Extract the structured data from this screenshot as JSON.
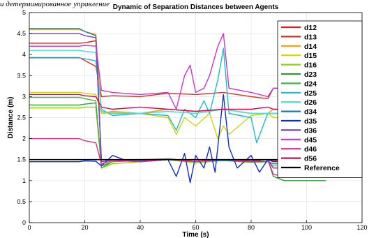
{
  "header_fragment": "и детерминированное управление",
  "chart_data": {
    "type": "line",
    "title": "Dynamic of Separation Distances between Agents",
    "xlabel": "Time (s)",
    "ylabel": "Distance (m)",
    "xlim": [
      0,
      120
    ],
    "ylim": [
      0,
      5
    ],
    "xticks": [
      "0",
      "20",
      "40",
      "60",
      "80",
      "100",
      "120"
    ],
    "yticks": [
      "0",
      "0.5",
      "1",
      "1.5",
      "2",
      "2.5",
      "3",
      "3.5",
      "4",
      "4.5",
      "5"
    ],
    "grid": true,
    "legend_position": "top-right",
    "series": [
      {
        "name": "d12",
        "color": "#e41a1c",
        "x": [
          0,
          18,
          20,
          24,
          26,
          30,
          40,
          50,
          60,
          70,
          80,
          86,
          88,
          92,
          107
        ],
        "y": [
          4.27,
          4.27,
          4.28,
          4.33,
          1.45,
          1.5,
          1.46,
          1.52,
          1.46,
          1.5,
          1.47,
          1.5,
          1.48,
          1.47,
          1.47
        ]
      },
      {
        "name": "d13",
        "color": "#d7301f",
        "x": [
          0,
          18,
          20,
          24,
          26,
          30,
          40,
          50,
          60,
          70,
          80,
          86,
          88,
          92,
          107
        ],
        "y": [
          3.93,
          3.93,
          3.86,
          3.72,
          3.0,
          3.02,
          3.0,
          3.08,
          3.05,
          3.1,
          3.0,
          2.95,
          3.2,
          3.2,
          3.2
        ]
      },
      {
        "name": "d14",
        "color": "#ff9900",
        "x": [
          0,
          18,
          20,
          24,
          26,
          30,
          40,
          50,
          60,
          70,
          80,
          86,
          88,
          92,
          107
        ],
        "y": [
          4.6,
          4.6,
          4.55,
          4.48,
          2.6,
          2.65,
          2.6,
          2.7,
          2.65,
          2.7,
          2.6,
          2.6,
          2.7,
          2.7,
          2.7
        ]
      },
      {
        "name": "d15",
        "color": "#d4d400",
        "x": [
          0,
          18,
          20,
          24,
          26,
          30,
          40,
          50,
          53,
          56,
          60,
          65,
          68,
          70,
          72,
          80,
          86,
          88,
          92,
          107
        ],
        "y": [
          3.1,
          3.1,
          3.08,
          3.05,
          2.6,
          2.62,
          2.6,
          2.5,
          2.1,
          2.5,
          2.3,
          2.6,
          2.0,
          2.3,
          2.1,
          2.55,
          2.6,
          2.5,
          2.5,
          2.5
        ]
      },
      {
        "name": "d16",
        "color": "#8fd400",
        "x": [
          0,
          18,
          20,
          24,
          26,
          30,
          40,
          50,
          60,
          70,
          80,
          86,
          88,
          92,
          107
        ],
        "y": [
          2.73,
          2.73,
          2.75,
          2.75,
          1.3,
          1.4,
          1.45,
          1.5,
          1.42,
          1.48,
          1.43,
          1.45,
          1.35,
          1.35,
          1.35
        ]
      },
      {
        "name": "d23",
        "color": "#2ca02c",
        "x": [
          0,
          18,
          20,
          24,
          26,
          30,
          40,
          50,
          60,
          70,
          80,
          86,
          88,
          92,
          107
        ],
        "y": [
          2.8,
          2.8,
          2.82,
          2.85,
          1.35,
          1.45,
          1.48,
          1.5,
          1.45,
          1.5,
          1.45,
          1.5,
          1.1,
          1.0,
          1.0
        ]
      },
      {
        "name": "d24",
        "color": "#4daf4a",
        "x": [
          0,
          18,
          20,
          24,
          26,
          30,
          40,
          50,
          60,
          70,
          80,
          86,
          88,
          92,
          107
        ],
        "y": [
          2.98,
          2.98,
          2.95,
          2.9,
          1.3,
          1.45,
          1.5,
          1.52,
          1.46,
          1.5,
          1.45,
          1.5,
          1.3,
          1.3,
          1.3
        ]
      },
      {
        "name": "d25",
        "color": "#17becf",
        "x": [
          0,
          18,
          20,
          24,
          26,
          30,
          40,
          50,
          53,
          56,
          60,
          63,
          65,
          68,
          70,
          72,
          80,
          82,
          86,
          88,
          92,
          107
        ],
        "y": [
          3.92,
          3.92,
          3.9,
          3.85,
          2.7,
          2.55,
          2.6,
          2.55,
          2.2,
          2.7,
          2.5,
          2.9,
          2.6,
          3.4,
          4.15,
          2.6,
          2.5,
          1.9,
          2.6,
          2.6,
          2.6,
          2.6
        ]
      },
      {
        "name": "d26",
        "color": "#40e0d0",
        "x": [
          0,
          18,
          20,
          24,
          26,
          30,
          40,
          50,
          60,
          70,
          80,
          86,
          88,
          92,
          107
        ],
        "y": [
          4.1,
          4.1,
          4.08,
          4.05,
          2.65,
          2.6,
          2.6,
          2.65,
          2.6,
          2.7,
          2.6,
          2.6,
          2.6,
          2.6,
          2.6
        ]
      },
      {
        "name": "d34",
        "color": "#1f77b4",
        "x": [
          0,
          18,
          20,
          24,
          26,
          30,
          40,
          50,
          60,
          70,
          80,
          86,
          88,
          92,
          107
        ],
        "y": [
          4.62,
          4.62,
          4.55,
          4.45,
          1.45,
          1.5,
          1.45,
          1.5,
          1.46,
          1.48,
          1.45,
          1.45,
          1.4,
          1.4,
          1.4
        ]
      },
      {
        "name": "d35",
        "color": "#0a2fd6",
        "x": [
          0,
          18,
          20,
          24,
          26,
          30,
          34,
          40,
          50,
          53,
          56,
          58,
          60,
          63,
          65,
          67,
          70,
          72,
          75,
          80,
          83,
          86,
          88,
          92,
          107
        ],
        "y": [
          1.45,
          1.45,
          1.47,
          1.46,
          1.35,
          1.6,
          1.5,
          1.45,
          1.5,
          1.1,
          1.65,
          0.95,
          1.6,
          1.3,
          1.8,
          1.2,
          3.05,
          1.8,
          1.3,
          1.6,
          1.2,
          1.5,
          1.45,
          1.45,
          1.45
        ]
      },
      {
        "name": "d36",
        "color": "#7b3fbf",
        "x": [
          0,
          18,
          20,
          24,
          26,
          30,
          40,
          50,
          60,
          70,
          80,
          86,
          88,
          92,
          107
        ],
        "y": [
          4.5,
          4.5,
          4.45,
          4.4,
          1.45,
          1.5,
          1.46,
          1.5,
          1.46,
          1.5,
          1.46,
          1.5,
          1.3,
          1.3,
          1.3
        ]
      },
      {
        "name": "d45",
        "color": "#cc33cc",
        "x": [
          0,
          18,
          20,
          24,
          26,
          30,
          40,
          50,
          53,
          56,
          58,
          60,
          63,
          65,
          68,
          70,
          72,
          80,
          86,
          88,
          92,
          107
        ],
        "y": [
          4.2,
          4.2,
          4.22,
          4.2,
          3.15,
          3.1,
          3.05,
          3.1,
          2.7,
          3.5,
          3.75,
          3.1,
          3.2,
          3.5,
          4.2,
          4.5,
          3.2,
          3.1,
          3.0,
          3.2,
          3.2,
          3.2
        ]
      },
      {
        "name": "d46",
        "color": "#e7298a",
        "x": [
          0,
          18,
          20,
          24,
          26,
          30,
          40,
          50,
          60,
          70,
          80,
          86,
          88,
          92,
          107
        ],
        "y": [
          2.0,
          2.0,
          1.95,
          1.9,
          1.4,
          1.48,
          1.45,
          1.5,
          1.46,
          1.5,
          1.45,
          1.5,
          1.15,
          1.1,
          1.1
        ]
      },
      {
        "name": "d56",
        "color": "#e7004c",
        "x": [
          0,
          18,
          20,
          24,
          26,
          30,
          40,
          50,
          60,
          70,
          80,
          86,
          88,
          92,
          107
        ],
        "y": [
          3.05,
          3.05,
          3.02,
          3.0,
          2.75,
          2.7,
          2.75,
          2.7,
          2.65,
          2.7,
          2.7,
          2.75,
          2.7,
          2.7,
          2.7
        ]
      },
      {
        "name": "Reference",
        "color": "#000000",
        "x": [
          0,
          107
        ],
        "y": [
          1.5,
          1.5
        ]
      }
    ]
  }
}
